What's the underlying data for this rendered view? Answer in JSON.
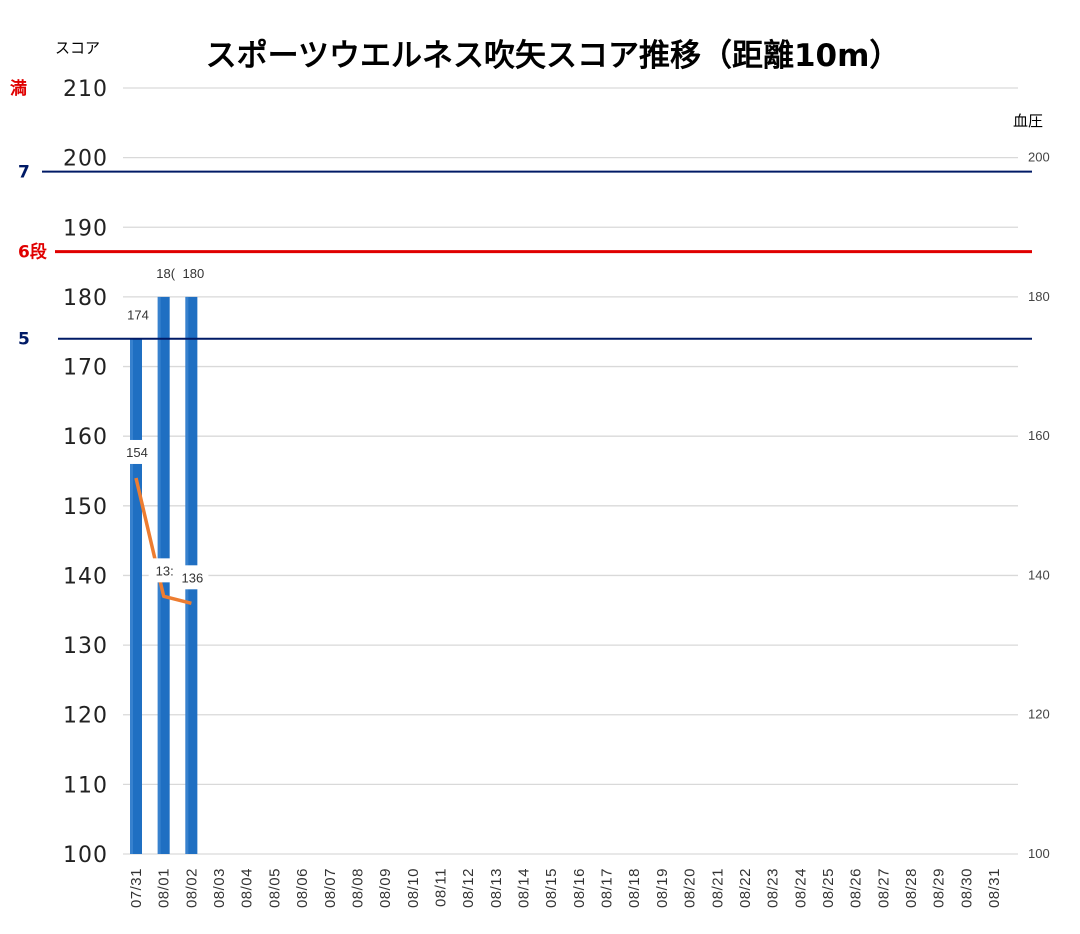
{
  "chart_data": {
    "type": "bar",
    "title": "スポーツウエルネス吹矢スコア推移（距離10m）",
    "ylabel": "スコア",
    "y2label": "血圧",
    "ylim": [
      100,
      210
    ],
    "y2lim": [
      100,
      210
    ],
    "yticks": [
      100,
      110,
      120,
      130,
      140,
      150,
      160,
      170,
      180,
      190,
      200,
      210
    ],
    "y2ticks": [
      100,
      120,
      140,
      160,
      180,
      200
    ],
    "grid": true,
    "categories": [
      "07/31",
      "08/01",
      "08/02",
      "08/03",
      "08/04",
      "08/05",
      "08/06",
      "08/07",
      "08/08",
      "08/09",
      "08/10",
      "08/11",
      "08/12",
      "08/13",
      "08/14",
      "08/15",
      "08/16",
      "08/17",
      "08/18",
      "08/19",
      "08/20",
      "08/21",
      "08/22",
      "08/23",
      "08/24",
      "08/25",
      "08/26",
      "08/27",
      "08/28",
      "08/29",
      "08/30",
      "08/31"
    ],
    "series": [
      {
        "kind": "bar",
        "color": "#1f6fc2",
        "values": [
          174,
          180,
          180,
          null,
          null,
          null,
          null,
          null,
          null,
          null,
          null,
          null,
          null,
          null,
          null,
          null,
          null,
          null,
          null,
          null,
          null,
          null,
          null,
          null,
          null,
          null,
          null,
          null,
          null,
          null,
          null,
          null
        ],
        "labels": [
          "174",
          "18(",
          "180"
        ]
      },
      {
        "kind": "line",
        "axis": "right",
        "color": "#ed7d31",
        "values": [
          154,
          137,
          136,
          null,
          null,
          null,
          null,
          null,
          null,
          null,
          null,
          null,
          null,
          null,
          null,
          null,
          null,
          null,
          null,
          null,
          null,
          null,
          null,
          null,
          null,
          null,
          null,
          null,
          null,
          null,
          null,
          null
        ],
        "labels": [
          "154",
          "13:",
          "136"
        ]
      }
    ],
    "reference_lines": [
      {
        "label": "満",
        "value": 210,
        "color": "#e00000",
        "line": false
      },
      {
        "label": "7",
        "value": 198,
        "color": "#001a66",
        "line": true
      },
      {
        "label": "6段",
        "value": 186.5,
        "color": "#e00000",
        "line": true
      },
      {
        "label": "5",
        "value": 174,
        "color": "#001a66",
        "line": true
      }
    ]
  }
}
